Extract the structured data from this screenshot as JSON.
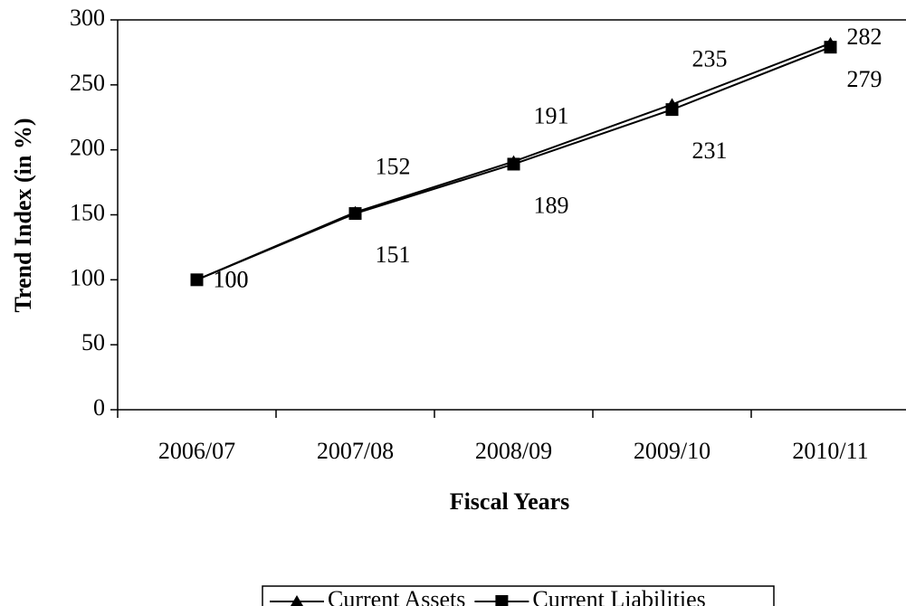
{
  "chart_data": {
    "type": "line",
    "x_label": "Fiscal Years",
    "y_label": "Trend Index (in %)",
    "categories": [
      "2006/07",
      "2007/08",
      "2008/09",
      "2009/10",
      "2010/11"
    ],
    "series": [
      {
        "name": "Current Assets",
        "color": "#000000",
        "marker": "triangle",
        "values": [
          100,
          152,
          191,
          235,
          282
        ]
      },
      {
        "name": "Current Liabilities",
        "color": "#000000",
        "marker": "square",
        "values": [
          100,
          151,
          189,
          231,
          279
        ]
      }
    ],
    "ylim": [
      0,
      300
    ],
    "yticks": [
      0,
      50,
      100,
      150,
      200,
      250,
      300
    ],
    "grid": false,
    "legend": "bottom"
  }
}
